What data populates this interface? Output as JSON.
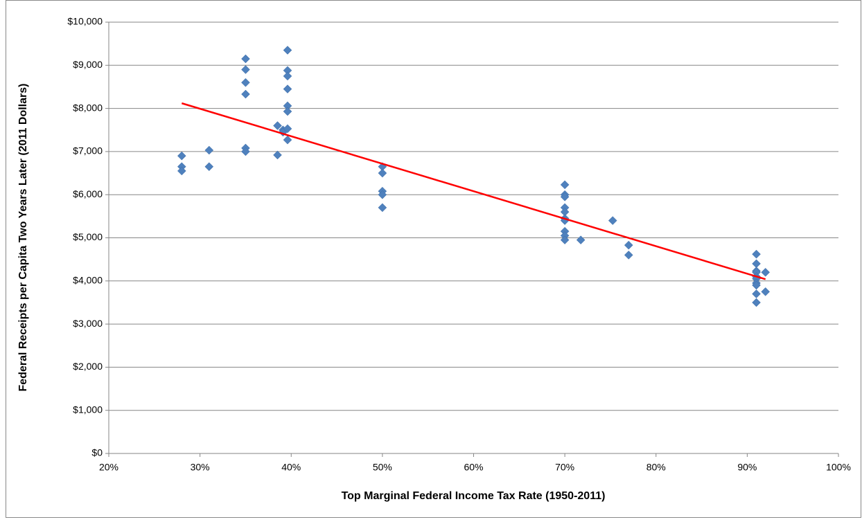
{
  "chart_data": {
    "type": "scatter",
    "x_label": "Top Marginal Federal Income Tax Rate (1950-2011)",
    "y_label": "Federal Receipts per Capita Two Years Later (2011 Dollars)",
    "xlim": [
      20,
      100
    ],
    "xticks": [
      {
        "value": 20,
        "label": "20%"
      },
      {
        "value": 30,
        "label": "30%"
      },
      {
        "value": 40,
        "label": "40%"
      },
      {
        "value": 50,
        "label": "50%"
      },
      {
        "value": 60,
        "label": "60%"
      },
      {
        "value": 70,
        "label": "70%"
      },
      {
        "value": 80,
        "label": "80%"
      },
      {
        "value": 90,
        "label": "90%"
      },
      {
        "value": 100,
        "label": "100%"
      }
    ],
    "ylim": [
      0,
      10000
    ],
    "yticks": [
      {
        "value": 0,
        "label": "$0"
      },
      {
        "value": 1000,
        "label": "$1,000"
      },
      {
        "value": 2000,
        "label": "$2,000"
      },
      {
        "value": 3000,
        "label": "$3,000"
      },
      {
        "value": 4000,
        "label": "$4,000"
      },
      {
        "value": 5000,
        "label": "$5,000"
      },
      {
        "value": 6000,
        "label": "$6,000"
      },
      {
        "value": 7000,
        "label": "$7,000"
      },
      {
        "value": 8000,
        "label": "$8,000"
      },
      {
        "value": 9000,
        "label": "$9,000"
      },
      {
        "value": 10000,
        "label": "$10,000"
      }
    ],
    "grid": true,
    "series": [
      {
        "color": "#4f81bd",
        "x": [
          28,
          28,
          28,
          31,
          31,
          35,
          35,
          35,
          35,
          35,
          35,
          38.5,
          38.5,
          39.1,
          39.1,
          39.6,
          39.6,
          39.6,
          39.6,
          39.6,
          39.6,
          39.6,
          39.6,
          50,
          50,
          50,
          50,
          50,
          70,
          70,
          70,
          70,
          70,
          70,
          70,
          70,
          70,
          70,
          71.75,
          75.25,
          77,
          77,
          91,
          91,
          91,
          91,
          91,
          91,
          91,
          91,
          91,
          91,
          92,
          92
        ],
        "values": [
          6900,
          6650,
          6550,
          7030,
          6650,
          9150,
          8900,
          8600,
          8330,
          7080,
          7000,
          7600,
          6920,
          7500,
          7450,
          9350,
          8880,
          8750,
          8450,
          8060,
          7930,
          7530,
          7270,
          6650,
          6500,
          6080,
          6000,
          5700,
          6230,
          6000,
          5950,
          5700,
          5600,
          5450,
          5400,
          5150,
          5050,
          4950,
          4950,
          5400,
          4830,
          4600,
          4620,
          4400,
          4230,
          4200,
          4100,
          4050,
          3950,
          3900,
          3700,
          3500,
          4200,
          3750
        ]
      }
    ],
    "trendline": {
      "color": "#ff0000",
      "x": [
        28,
        92
      ],
      "values": [
        8120,
        4040
      ]
    }
  }
}
